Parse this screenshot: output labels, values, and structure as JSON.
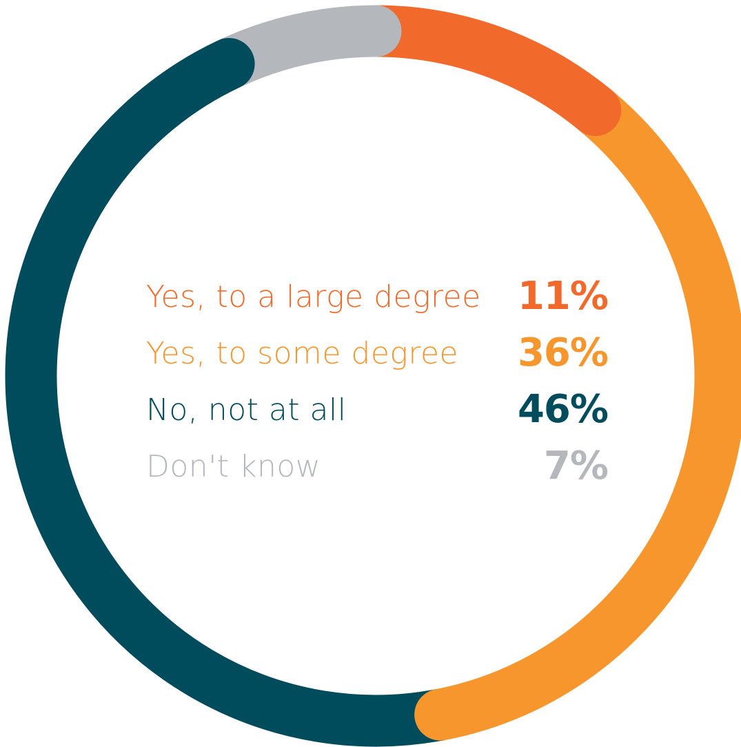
{
  "chart_data": {
    "type": "pie",
    "variant": "donut",
    "categories": [
      "Yes, to a large degree",
      "Yes, to some degree",
      "No, not at all",
      "Don't know"
    ],
    "values": [
      11,
      36,
      46,
      7
    ],
    "value_labels": [
      "11%",
      "36%",
      "46%",
      "7%"
    ],
    "colors": [
      "#f26a2b",
      "#f7962d",
      "#004b5c",
      "#b4b7bb"
    ],
    "legend_placement": "center",
    "start_angle_degrees": 0,
    "direction": "clockwise"
  }
}
